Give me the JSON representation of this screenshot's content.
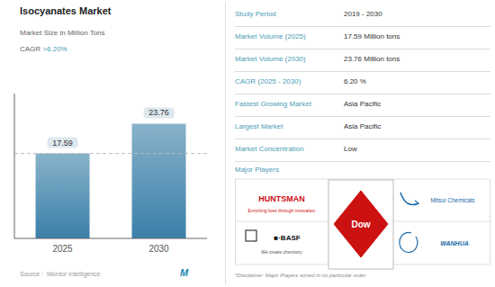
{
  "chart_data": {
    "type": "bar",
    "title": "Isocyanates Market",
    "subtitle": "Market Size in Million Tons",
    "categories": [
      "2025",
      "2030"
    ],
    "values": [
      17.59,
      23.76
    ],
    "color": "#3a7fa8",
    "ylim": [
      0,
      30
    ],
    "yticks": [],
    "data_labels": true,
    "tick_labels": "x",
    "grid": false,
    "annotations": [
      "CAGR ",
      ">6.20%",
      "Source :  Mordor Intelligence",
      "M",
      "Study Period",
      "2019 - 2030",
      "Market Volume (2025)",
      "17.59 Million tons",
      "Market Volume (2030)",
      "23.76 Million tons",
      "CAGR (2025 - 2030)",
      "6.20 %",
      "Fastest Growing Market",
      "Asia Pacific",
      "Largest Market",
      "Asia Pacific",
      "Market Concentration",
      "Low",
      "Major Players",
      "HUNTSMAN",
      "Enriching lives through innovation",
      "Mitsui Chemicals",
      "■·BASF",
      "We create chemistry",
      "Dow",
      "WANHUA",
      "*Disclaimer: Major Players sorted in no particular order"
    ]
  }
}
